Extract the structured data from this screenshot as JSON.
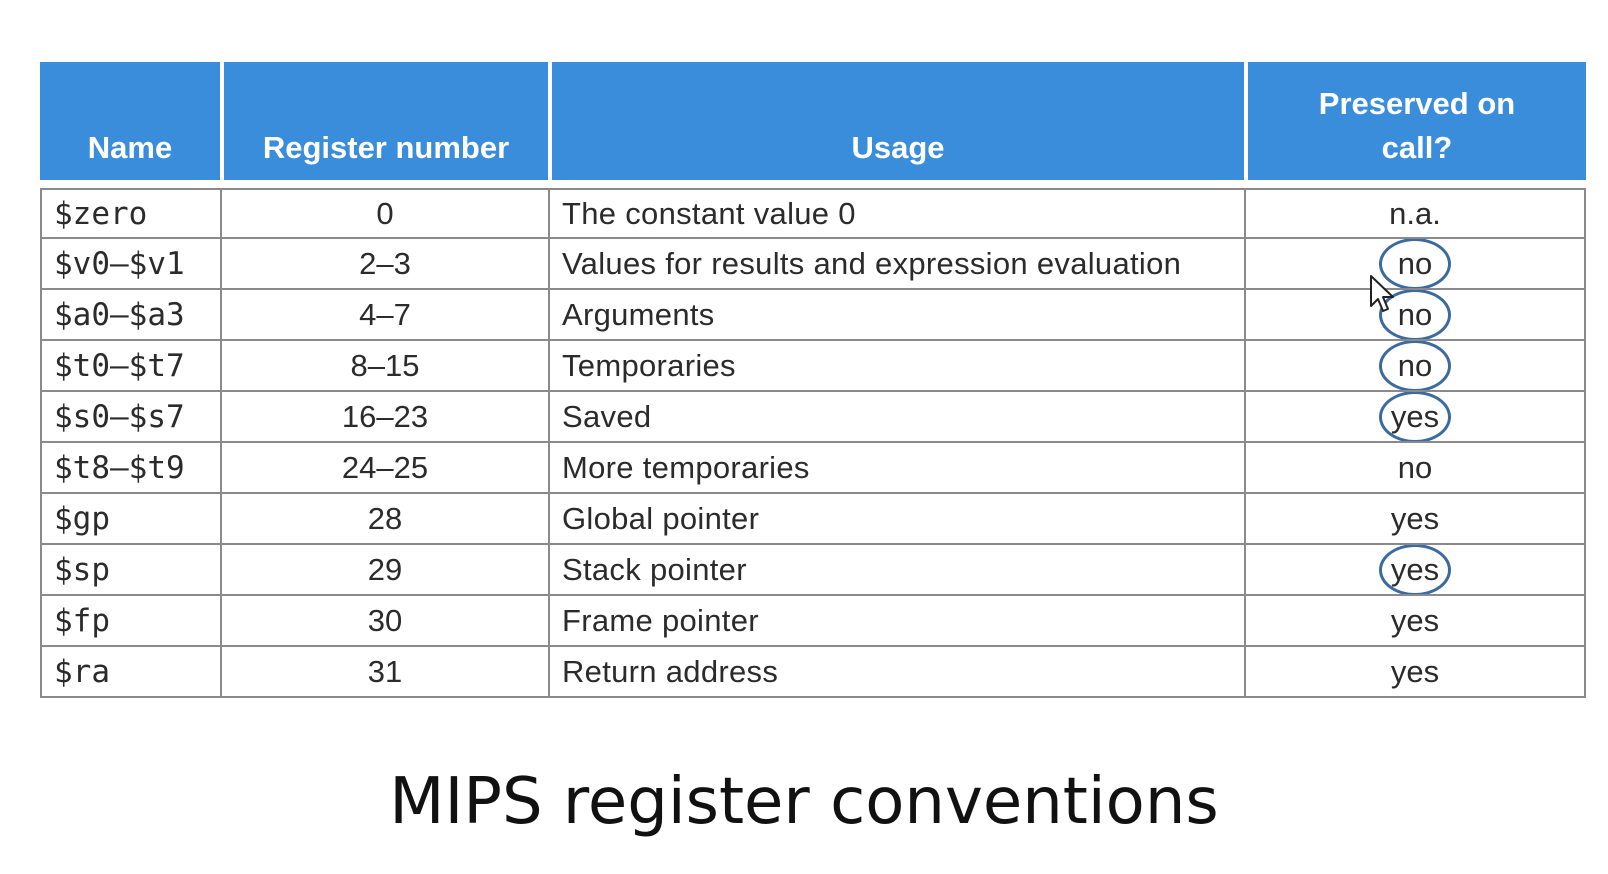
{
  "table": {
    "headers": {
      "name": "Name",
      "register_number": "Register number",
      "usage": "Usage",
      "preserved": "Preserved on call?"
    },
    "rows": [
      {
        "name": "$zero",
        "number": "0",
        "usage": "The constant value 0",
        "preserved": "n.a.",
        "circled": false
      },
      {
        "name": "$v0–$v1",
        "number": "2–3",
        "usage": "Values for results and expression evaluation",
        "preserved": "no",
        "circled": true
      },
      {
        "name": "$a0–$a3",
        "number": "4–7",
        "usage": "Arguments",
        "preserved": "no",
        "circled": true
      },
      {
        "name": "$t0–$t7",
        "number": "8–15",
        "usage": "Temporaries",
        "preserved": "no",
        "circled": true
      },
      {
        "name": "$s0–$s7",
        "number": "16–23",
        "usage": "Saved",
        "preserved": "yes",
        "circled": true
      },
      {
        "name": "$t8–$t9",
        "number": "24–25",
        "usage": "More temporaries",
        "preserved": "no",
        "circled": false
      },
      {
        "name": "$gp",
        "number": "28",
        "usage": "Global pointer",
        "preserved": "yes",
        "circled": false
      },
      {
        "name": "$sp",
        "number": "29",
        "usage": "Stack pointer",
        "preserved": "yes",
        "circled": true
      },
      {
        "name": "$fp",
        "number": "30",
        "usage": "Frame pointer",
        "preserved": "yes",
        "circled": false
      },
      {
        "name": "$ra",
        "number": "31",
        "usage": "Return address",
        "preserved": "yes",
        "circled": false
      }
    ]
  },
  "caption": "MIPS register conventions",
  "colors": {
    "header_bg": "#3a8ddb",
    "circle": "#3b6aa0"
  }
}
